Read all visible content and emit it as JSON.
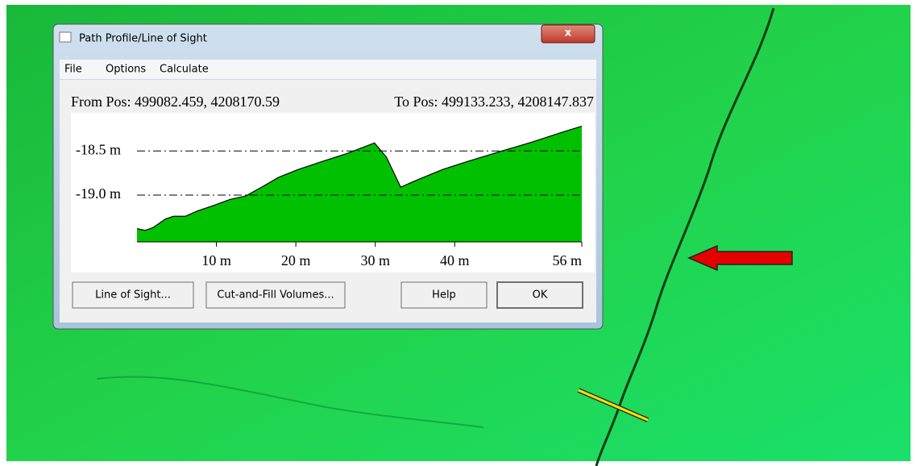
{
  "window": {
    "title": "Path Profile/Line of Sight",
    "close": "x"
  },
  "menu": [
    "File",
    "Options",
    "Calculate"
  ],
  "from_pos": "From Pos: 499082.459, 4208170.59",
  "to_pos": "To Pos: 499133.233, 4208147.837",
  "buttons": [
    "Line of Sight...",
    "Cut-and-Fill Volumes...",
    "Help",
    "OK"
  ],
  "chart_data": {
    "type": "area",
    "color": "#00c000",
    "grid": true,
    "x": [
      0,
      1.0,
      2.0,
      3.6,
      4.6,
      6.1,
      7.6,
      9.6,
      11.7,
      13.7,
      15.7,
      17.8,
      20.3,
      23.3,
      26.4,
      29.9,
      31.4,
      33.2,
      35.5,
      38.5,
      41.6,
      45.6,
      49.7,
      53.8,
      56
    ],
    "values": [
      -19.38,
      -19.4,
      -19.37,
      -19.27,
      -19.24,
      -19.24,
      -19.18,
      -19.12,
      -19.05,
      -19.01,
      -18.91,
      -18.8,
      -18.71,
      -18.62,
      -18.53,
      -18.41,
      -18.57,
      -18.91,
      -18.82,
      -18.71,
      -18.62,
      -18.51,
      -18.4,
      -18.28,
      -18.22
    ],
    "xlim": [
      0,
      56
    ],
    "ylim": [
      -19.53,
      -18.16
    ],
    "xticks": [
      {
        "value": 10,
        "label": "10 m"
      },
      {
        "value": 20,
        "label": "20 m"
      },
      {
        "value": 30,
        "label": "30 m"
      },
      {
        "value": 40,
        "label": "40 m"
      },
      {
        "value": 56,
        "label": "56 m"
      }
    ],
    "yticks": [
      {
        "value": -19.0,
        "label": "-19.0 m"
      },
      {
        "value": -18.5,
        "label": "-18.5 m"
      }
    ]
  }
}
